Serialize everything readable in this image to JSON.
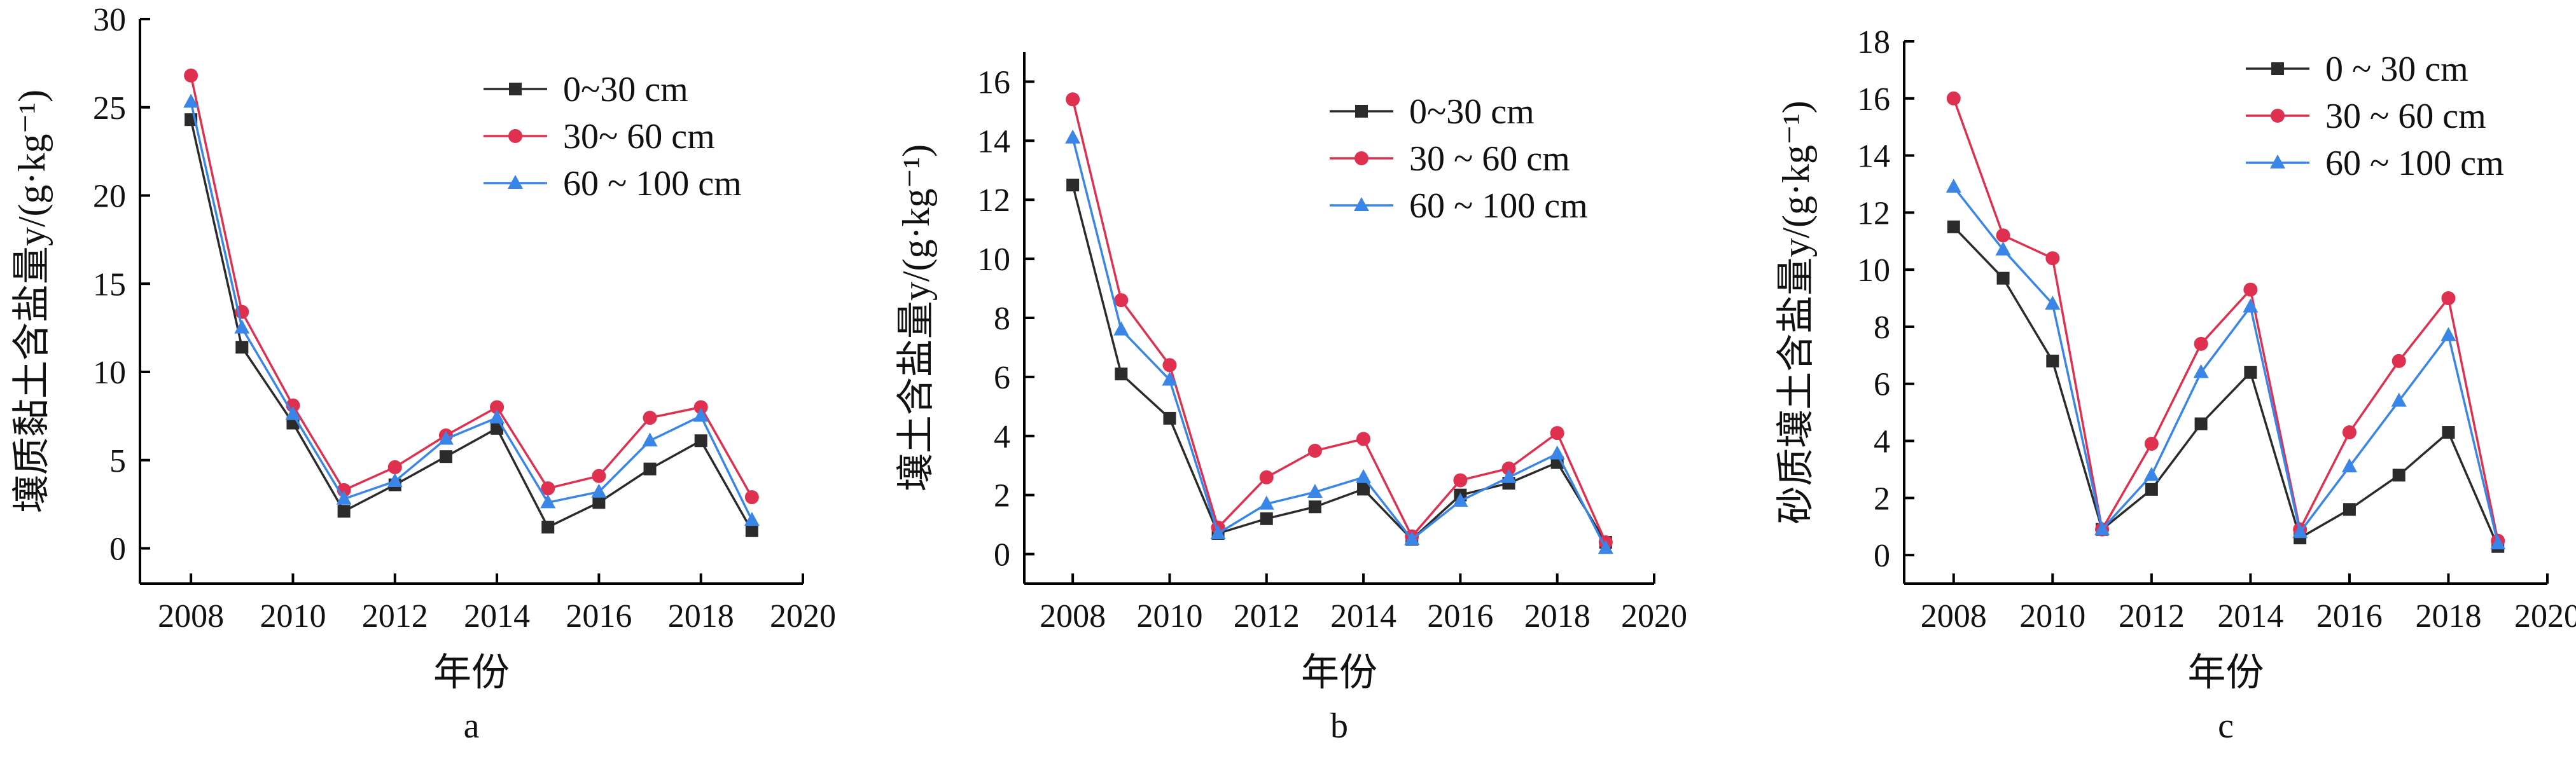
{
  "colors": {
    "series_0_30": "#2b2b2b",
    "series_30_60": "#e03050",
    "series_60_100": "#3a86e8",
    "axis": "#000000"
  },
  "markers": {
    "series_0_30": "square",
    "series_30_60": "circle",
    "series_60_100": "triangle"
  },
  "chart_data": [
    {
      "panel": "a",
      "type": "line",
      "xlabel": "年份",
      "ylabel": "壤质黏土含盐量y/(g·kg⁻¹)",
      "xlim": [
        2007,
        2020
      ],
      "ylim": [
        -2,
        30
      ],
      "xticks": [
        2008,
        2010,
        2012,
        2014,
        2016,
        2018,
        2020
      ],
      "yticks": [
        0,
        5,
        10,
        15,
        20,
        25,
        30
      ],
      "legend": "top-right",
      "x": [
        2008,
        2009,
        2010,
        2011,
        2012,
        2013,
        2014,
        2015,
        2016,
        2017,
        2018,
        2019
      ],
      "series": [
        {
          "name": "0~30 cm",
          "key": "series_0_30",
          "values": [
            24.3,
            11.4,
            7.1,
            2.1,
            3.6,
            5.2,
            6.8,
            1.2,
            2.6,
            4.5,
            6.1,
            1.0
          ]
        },
        {
          "name": "30~ 60 cm",
          "key": "series_30_60",
          "values": [
            26.8,
            13.4,
            8.1,
            3.3,
            4.6,
            6.4,
            8.0,
            3.4,
            4.1,
            7.4,
            8.0,
            2.9
          ]
        },
        {
          "name": "60 ~ 100 cm",
          "key": "series_60_100",
          "values": [
            25.3,
            12.5,
            7.6,
            2.8,
            3.8,
            6.2,
            7.4,
            2.6,
            3.2,
            6.1,
            7.5,
            1.6
          ]
        }
      ]
    },
    {
      "panel": "b",
      "type": "line",
      "xlabel": "年份",
      "ylabel": "壤土含盐量y/(g·kg⁻¹)",
      "xlim": [
        2007,
        2020
      ],
      "ylim": [
        -1,
        17
      ],
      "xticks": [
        2008,
        2010,
        2012,
        2014,
        2016,
        2018,
        2020
      ],
      "yticks": [
        0,
        2,
        4,
        6,
        8,
        10,
        12,
        14,
        16
      ],
      "legend": "top-right",
      "x": [
        2008,
        2009,
        2010,
        2011,
        2012,
        2013,
        2014,
        2015,
        2016,
        2017,
        2018,
        2019
      ],
      "series": [
        {
          "name": "0~30 cm",
          "key": "series_0_30",
          "values": [
            12.5,
            6.1,
            4.6,
            0.7,
            1.2,
            1.6,
            2.2,
            0.5,
            2.0,
            2.4,
            3.1,
            0.4
          ]
        },
        {
          "name": "30 ~ 60 cm",
          "key": "series_30_60",
          "values": [
            15.4,
            8.6,
            6.4,
            0.9,
            2.6,
            3.5,
            3.9,
            0.6,
            2.5,
            2.9,
            4.1,
            0.4
          ]
        },
        {
          "name": "60 ~ 100 cm",
          "key": "series_60_100",
          "values": [
            14.1,
            7.6,
            5.9,
            0.7,
            1.7,
            2.1,
            2.6,
            0.5,
            1.8,
            2.6,
            3.4,
            0.2
          ]
        }
      ]
    },
    {
      "panel": "c",
      "type": "line",
      "xlabel": "年份",
      "ylabel": "砂质壤土含盐量y/(g·kg⁻¹)",
      "xlim": [
        2007,
        2020
      ],
      "ylim": [
        -1,
        18
      ],
      "xticks": [
        2008,
        2010,
        2012,
        2014,
        2016,
        2018,
        2020
      ],
      "yticks": [
        0,
        2,
        4,
        6,
        8,
        10,
        12,
        14,
        16,
        18
      ],
      "legend": "top-right",
      "x": [
        2008,
        2009,
        2010,
        2011,
        2012,
        2013,
        2014,
        2015,
        2016,
        2017,
        2018,
        2019
      ],
      "series": [
        {
          "name": "0 ~ 30 cm",
          "key": "series_0_30",
          "values": [
            11.5,
            9.7,
            6.8,
            0.9,
            2.3,
            4.6,
            6.4,
            0.6,
            1.6,
            2.8,
            4.3,
            0.3
          ]
        },
        {
          "name": "30 ~ 60 cm",
          "key": "series_30_60",
          "values": [
            16.0,
            11.2,
            10.4,
            0.9,
            3.9,
            7.4,
            9.3,
            0.9,
            4.3,
            6.8,
            9.0,
            0.5
          ]
        },
        {
          "name": "60 ~ 100 cm",
          "key": "series_60_100",
          "values": [
            12.9,
            10.7,
            8.8,
            0.9,
            2.8,
            6.4,
            8.7,
            0.8,
            3.1,
            5.4,
            7.7,
            0.4
          ]
        }
      ]
    }
  ]
}
